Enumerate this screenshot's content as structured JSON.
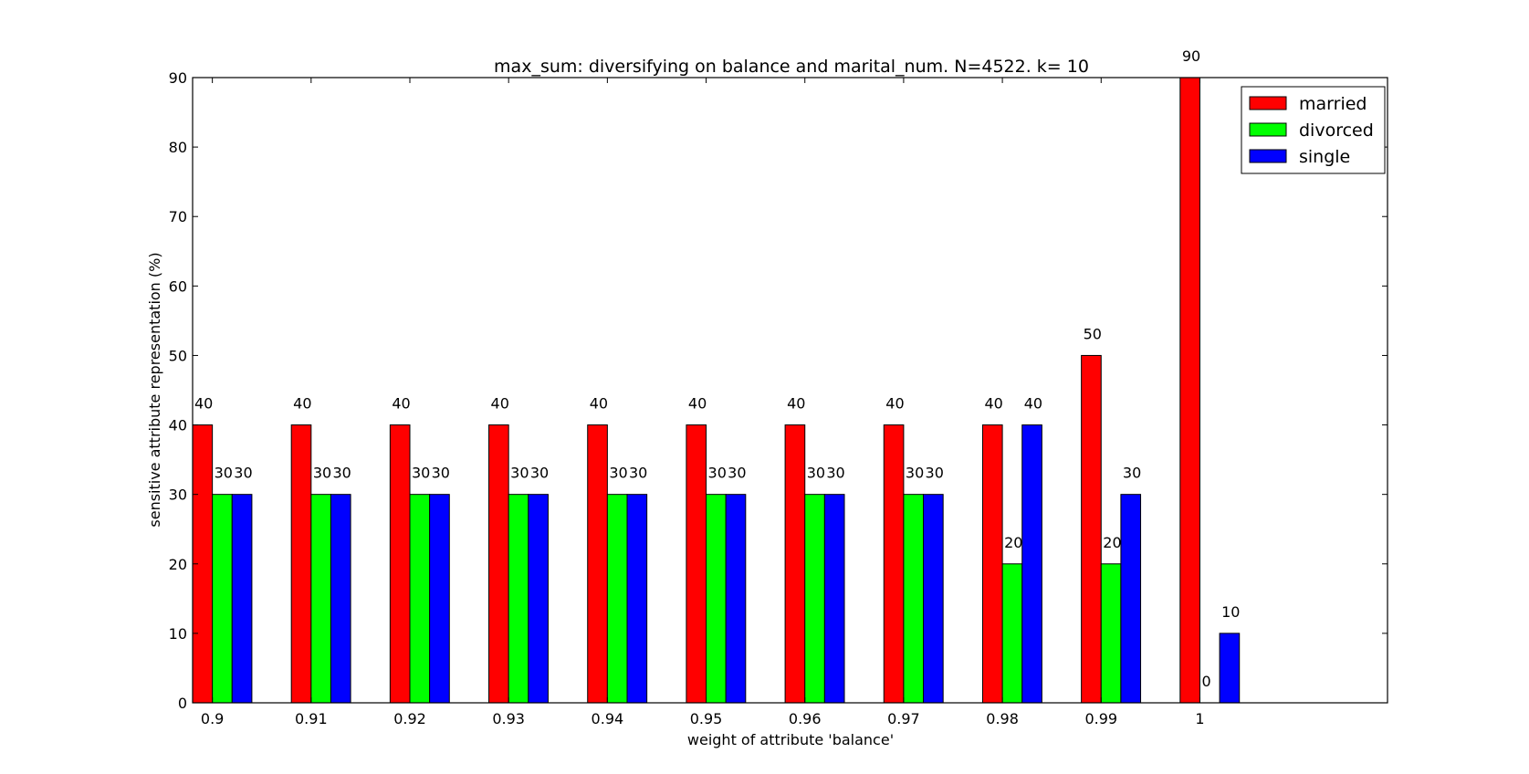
{
  "chart_data": {
    "type": "bar",
    "title": "max_sum: diversifying on balance and marital_num. N=4522. k= 10",
    "xlabel": "weight of attribute 'balance'",
    "ylabel": "sensitive attribute representation (%)",
    "categories": [
      "0.9",
      "0.91",
      "0.92",
      "0.93",
      "0.94",
      "0.95",
      "0.96",
      "0.97",
      "0.98",
      "0.99",
      "1"
    ],
    "ylim": [
      0,
      90
    ],
    "yticks": [
      "0",
      "10",
      "20",
      "30",
      "40",
      "50",
      "60",
      "70",
      "80",
      "90"
    ],
    "grid": false,
    "legend_position": "top-right",
    "series": [
      {
        "name": "married",
        "color": "#ff0000",
        "values": [
          40,
          40,
          40,
          40,
          40,
          40,
          40,
          40,
          40,
          50,
          90
        ],
        "labels": [
          "40",
          "40",
          "40",
          "40",
          "40",
          "40",
          "40",
          "40",
          "40",
          "50",
          "90"
        ]
      },
      {
        "name": "divorced",
        "color": "#00ff00",
        "values": [
          30,
          30,
          30,
          30,
          30,
          30,
          30,
          30,
          20,
          20,
          0
        ],
        "labels": [
          "30",
          "30",
          "30",
          "30",
          "30",
          "30",
          "30",
          "30",
          "20",
          "20",
          "0"
        ]
      },
      {
        "name": "single",
        "color": "#0000ff",
        "values": [
          30,
          30,
          30,
          30,
          30,
          30,
          30,
          30,
          40,
          30,
          10
        ],
        "labels": [
          "30",
          "30",
          "30",
          "30",
          "30",
          "30",
          "30",
          "30",
          "40",
          "30",
          "10"
        ]
      }
    ]
  }
}
